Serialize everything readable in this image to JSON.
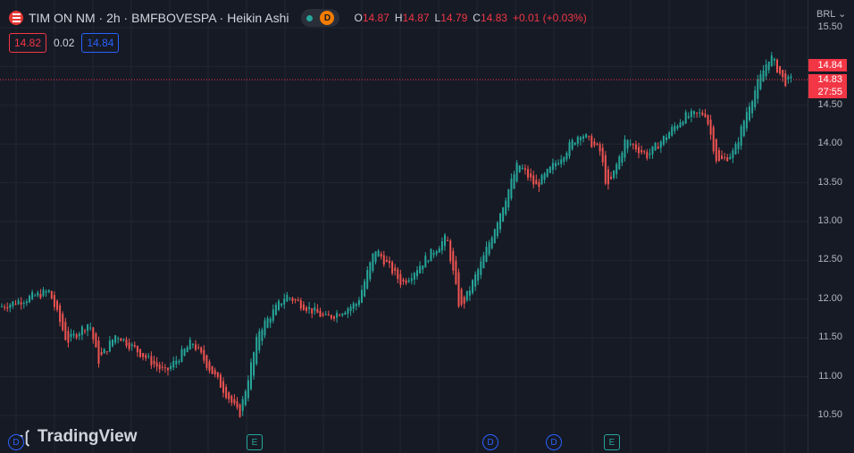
{
  "header": {
    "symbol_title": "TIM ON NM · 2h · BMFBOVESPA · Heikin Ashi",
    "session_badge": "D",
    "ohlc": [
      {
        "key": "O",
        "value": "14.87"
      },
      {
        "key": "H",
        "value": "14.87"
      },
      {
        "key": "L",
        "value": "14.79"
      },
      {
        "key": "C",
        "value": "14.83"
      }
    ],
    "change": "+0.01 (+0.03%)",
    "bid": "14.82",
    "spread": "0.02",
    "ask": "14.84"
  },
  "price_axis": {
    "currency": "BRL",
    "ticks": [
      "15.50",
      "15.00",
      "14.50",
      "14.00",
      "13.50",
      "13.00",
      "12.50",
      "12.00",
      "11.50",
      "11.00",
      "10.50"
    ],
    "current_tags": [
      "14.84",
      "14.83",
      "27:55"
    ]
  },
  "watermark": {
    "text": "TradingView",
    "logo_icon": "tradingview-logo-icon"
  },
  "events": [
    "D",
    "E",
    "D",
    "D",
    "E"
  ],
  "colors": {
    "up": "#26a69a",
    "down": "#ef5350",
    "background": "#161a25",
    "grid": "#232632"
  },
  "chart_data": {
    "type": "candlestick",
    "style": "Heikin Ashi",
    "interval": "2h",
    "y_ticks": [
      10.5,
      11.0,
      11.5,
      12.0,
      12.5,
      13.0,
      13.5,
      14.0,
      14.5,
      15.0,
      15.5
    ],
    "ylim": [
      10.3,
      15.65
    ],
    "current_price": 14.83,
    "close_path": [
      {
        "x": 0,
        "y": 11.9
      },
      {
        "x": 55,
        "y": 12.1
      },
      {
        "x": 75,
        "y": 11.45
      },
      {
        "x": 100,
        "y": 11.7
      },
      {
        "x": 110,
        "y": 11.2
      },
      {
        "x": 130,
        "y": 11.55
      },
      {
        "x": 185,
        "y": 11.05
      },
      {
        "x": 215,
        "y": 11.45
      },
      {
        "x": 255,
        "y": 10.75
      },
      {
        "x": 268,
        "y": 10.5
      },
      {
        "x": 290,
        "y": 11.6
      },
      {
        "x": 320,
        "y": 12.05
      },
      {
        "x": 365,
        "y": 11.75
      },
      {
        "x": 400,
        "y": 11.95
      },
      {
        "x": 420,
        "y": 12.65
      },
      {
        "x": 450,
        "y": 12.2
      },
      {
        "x": 500,
        "y": 12.8
      },
      {
        "x": 515,
        "y": 11.85
      },
      {
        "x": 540,
        "y": 12.5
      },
      {
        "x": 580,
        "y": 13.75
      },
      {
        "x": 600,
        "y": 13.45
      },
      {
        "x": 650,
        "y": 14.15
      },
      {
        "x": 672,
        "y": 13.9
      },
      {
        "x": 680,
        "y": 13.4
      },
      {
        "x": 700,
        "y": 14.05
      },
      {
        "x": 725,
        "y": 13.85
      },
      {
        "x": 765,
        "y": 14.35
      },
      {
        "x": 790,
        "y": 14.4
      },
      {
        "x": 803,
        "y": 13.75
      },
      {
        "x": 822,
        "y": 13.9
      },
      {
        "x": 838,
        "y": 14.5
      },
      {
        "x": 862,
        "y": 15.15
      },
      {
        "x": 878,
        "y": 14.8
      },
      {
        "x": 888,
        "y": 14.83
      }
    ]
  }
}
